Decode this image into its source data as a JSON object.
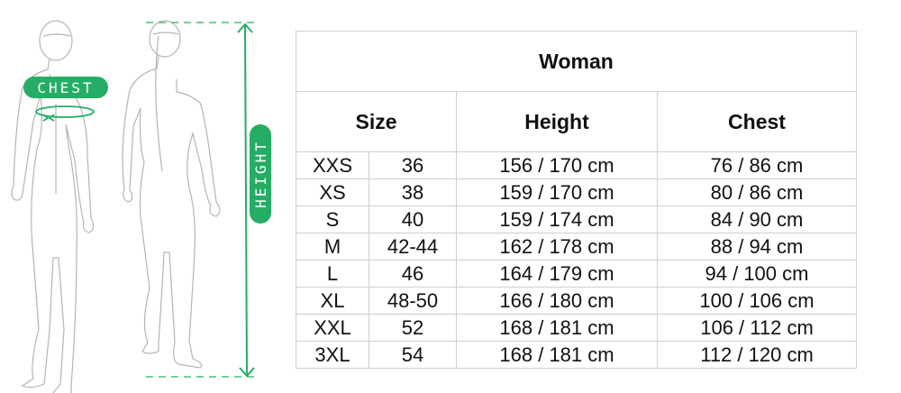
{
  "illustration": {
    "chest_label": "CHEST",
    "height_label": "HEIGHT",
    "accent_color": "#25ad66"
  },
  "table": {
    "title": "Woman",
    "headers": {
      "size": "Size",
      "height": "Height",
      "chest": "Chest"
    },
    "rows": [
      {
        "size": "XXS",
        "eu": "36",
        "height": "156 / 170 cm",
        "chest": "76 / 86 cm"
      },
      {
        "size": "XS",
        "eu": "38",
        "height": "159 / 170 cm",
        "chest": "80 / 86 cm"
      },
      {
        "size": "S",
        "eu": "40",
        "height": "159 / 174 cm",
        "chest": "84 / 90 cm"
      },
      {
        "size": "M",
        "eu": "42-44",
        "height": "162 / 178 cm",
        "chest": "88 / 94 cm"
      },
      {
        "size": "L",
        "eu": "46",
        "height": "164 / 179 cm",
        "chest": "94 / 100 cm"
      },
      {
        "size": "XL",
        "eu": "48-50",
        "height": "166 / 180 cm",
        "chest": "100 / 106 cm"
      },
      {
        "size": "XXL",
        "eu": "52",
        "height": "168 / 181 cm",
        "chest": "106 / 112 cm"
      },
      {
        "size": "3XL",
        "eu": "54",
        "height": "168 / 181 cm",
        "chest": "112 / 120 cm"
      }
    ]
  }
}
